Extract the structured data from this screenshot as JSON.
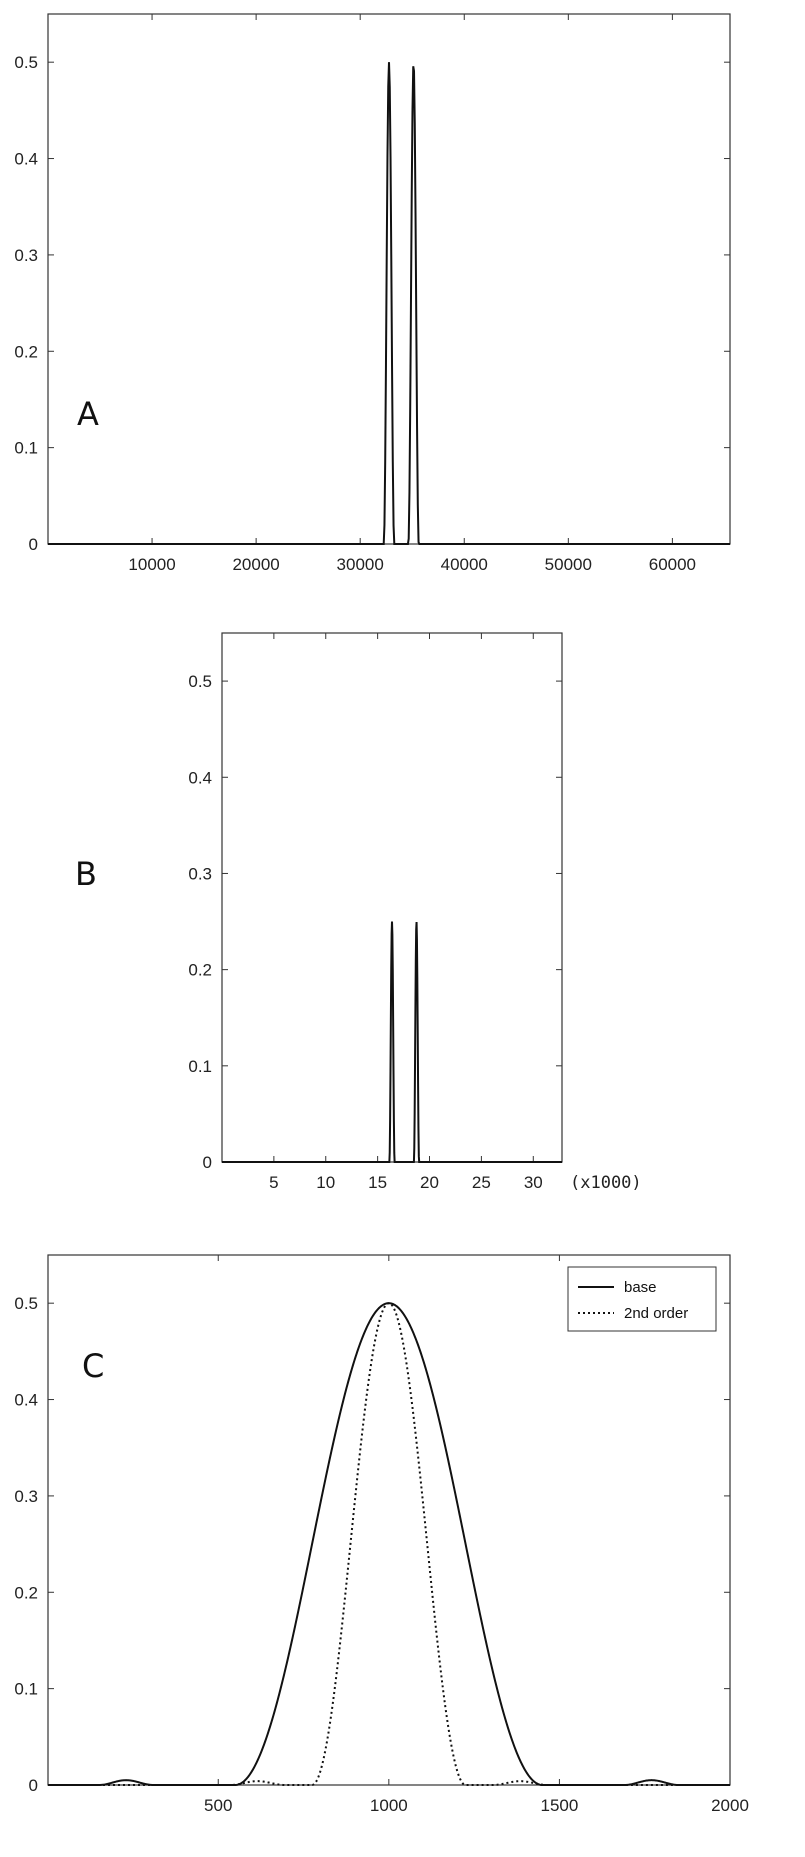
{
  "chart_data": [
    {
      "type": "line",
      "panel_label": "A",
      "xlim": [
        1,
        65536
      ],
      "ylim": [
        0,
        0.55
      ],
      "xticks": [
        10000,
        20000,
        30000,
        40000,
        50000,
        60000
      ],
      "xtick_labels": [
        "10000",
        "20000",
        "30000",
        "40000",
        "50000",
        "60000"
      ],
      "yticks": [
        0,
        0.1,
        0.2,
        0.3,
        0.4,
        0.5
      ],
      "ytick_labels": [
        "0",
        "0.1",
        "0.2",
        "0.3",
        "0.4",
        "0.5"
      ],
      "grid": false,
      "series": [
        {
          "peaks": [
            {
              "center": 32768,
              "height": 0.5,
              "halfwidth": 500
            },
            {
              "center": 35128,
              "height": 0.5,
              "halfwidth": 500
            }
          ]
        }
      ]
    },
    {
      "type": "line",
      "panel_label": "B",
      "xlim": [
        1,
        32768
      ],
      "ylim": [
        0,
        0.55
      ],
      "xticks": [
        5000,
        10000,
        15000,
        20000,
        25000,
        30000
      ],
      "xtick_labels": [
        "5",
        "10",
        "15",
        "20",
        "25",
        "30"
      ],
      "x_multiplier_label": "(x1000)",
      "yticks": [
        0,
        0.1,
        0.2,
        0.3,
        0.4,
        0.5
      ],
      "ytick_labels": [
        "0",
        "0.1",
        "0.2",
        "0.3",
        "0.4",
        "0.5"
      ],
      "grid": false,
      "series": [
        {
          "peaks": [
            {
              "center": 16384,
              "height": 0.25,
              "halfwidth": 250
            },
            {
              "center": 18744,
              "height": 0.25,
              "halfwidth": 250
            }
          ]
        }
      ]
    },
    {
      "type": "line",
      "panel_label": "C",
      "xlim": [
        1,
        2000
      ],
      "ylim": [
        0,
        0.55
      ],
      "xticks": [
        500,
        1000,
        1500,
        2000
      ],
      "xtick_labels": [
        "500",
        "1000",
        "1500",
        "2000"
      ],
      "yticks": [
        0,
        0.1,
        0.2,
        0.3,
        0.4,
        0.5
      ],
      "ytick_labels": [
        "0",
        "0.1",
        "0.2",
        "0.3",
        "0.4",
        "0.5"
      ],
      "grid": false,
      "legend_position": "top-right",
      "series": [
        {
          "name": "base",
          "style": "solid",
          "center": 1000,
          "height": 0.5,
          "halfwidth": 450,
          "sidelobe_centers": [
            230,
            1770
          ],
          "sidelobe_height": 0.005
        },
        {
          "name": "2nd order",
          "style": "dotted",
          "center": 1000,
          "height": 0.5,
          "halfwidth": 225,
          "sidelobe_centers": [
            615,
            1385
          ],
          "sidelobe_height": 0.004
        }
      ]
    }
  ]
}
